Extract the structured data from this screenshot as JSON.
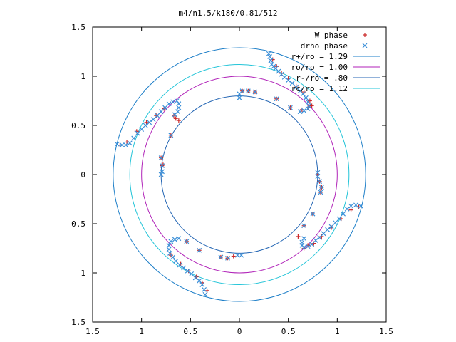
{
  "chart_data": {
    "type": "scatter",
    "title": "m4/n1.5/k180/0.81/512",
    "xlabel": "",
    "ylabel": "",
    "xlim": [
      -1.5,
      1.5
    ],
    "ylim": [
      -1.5,
      1.5
    ],
    "x_ticks": [
      -1.5,
      -1,
      -0.5,
      0,
      0.5,
      1,
      1.5
    ],
    "y_ticks": [
      -1.5,
      -1,
      -0.5,
      0,
      0.5,
      1,
      1.5
    ],
    "x_tick_labels": [
      "1.5",
      "1",
      "0.5",
      "0",
      "0.5",
      "1",
      "1.5"
    ],
    "y_tick_labels": [
      "1.5",
      "1",
      "0.5",
      "0",
      "0.5",
      "1",
      "1.5"
    ],
    "grid": false,
    "legend_position": "top-right",
    "circles": [
      {
        "label": "r+/ro = 1.29",
        "radius": 1.29,
        "color": "#1e7fc8"
      },
      {
        "label": "ro/ro = 1.00",
        "radius": 1.0,
        "color": "#b022b8"
      },
      {
        "label": "r-/ro = .80",
        "radius": 0.8,
        "color": "#2466b4"
      },
      {
        "label": "rc/ro = 1.12",
        "radius": 1.12,
        "color": "#22c4d8"
      }
    ],
    "series": [
      {
        "name": "W phase",
        "marker": "plus",
        "color": "#cc2a2a",
        "points": [
          [
            0.03,
            0.85
          ],
          [
            0.09,
            0.85
          ],
          [
            0.16,
            0.84
          ],
          [
            0.38,
            0.77
          ],
          [
            0.52,
            0.68
          ],
          [
            0.64,
            0.66
          ],
          [
            0.7,
            0.68
          ],
          [
            0.74,
            0.7
          ],
          [
            -0.79,
            0.09
          ],
          [
            -0.8,
            0.17
          ],
          [
            -0.78,
            0.1
          ],
          [
            -0.7,
            0.4
          ],
          [
            -0.62,
            0.55
          ],
          [
            -0.65,
            0.57
          ],
          [
            -0.67,
            0.6
          ],
          [
            0.8,
            0.0
          ],
          [
            0.82,
            -0.07
          ],
          [
            0.84,
            -0.13
          ],
          [
            0.83,
            -0.18
          ],
          [
            0.75,
            -0.4
          ],
          [
            0.66,
            -0.52
          ],
          [
            0.6,
            -0.63
          ],
          [
            -0.54,
            -0.68
          ],
          [
            -0.41,
            -0.77
          ],
          [
            -0.19,
            -0.84
          ],
          [
            -0.12,
            -0.85
          ],
          [
            -0.06,
            -0.83
          ],
          [
            0.34,
            1.17
          ],
          [
            0.38,
            1.1
          ],
          [
            0.43,
            1.03
          ],
          [
            0.5,
            0.98
          ],
          [
            0.58,
            0.9
          ],
          [
            0.66,
            0.84
          ],
          [
            0.72,
            0.75
          ],
          [
            -1.22,
            0.3
          ],
          [
            -1.15,
            0.33
          ],
          [
            -1.05,
            0.44
          ],
          [
            -0.95,
            0.53
          ],
          [
            -0.85,
            0.6
          ],
          [
            -0.77,
            0.67
          ],
          [
            -0.33,
            -1.18
          ],
          [
            -0.38,
            -1.1
          ],
          [
            -0.44,
            -1.04
          ],
          [
            -0.52,
            -0.98
          ],
          [
            -0.6,
            -0.91
          ],
          [
            -0.7,
            -0.82
          ],
          [
            1.22,
            -0.33
          ],
          [
            1.14,
            -0.36
          ],
          [
            1.04,
            -0.45
          ],
          [
            0.94,
            -0.54
          ],
          [
            0.84,
            -0.63
          ],
          [
            0.76,
            -0.7
          ],
          [
            0.7,
            -0.72
          ],
          [
            0.66,
            -0.75
          ]
        ]
      },
      {
        "name": "drho phase",
        "marker": "cross",
        "color": "#3a8fd8",
        "points": [
          [
            0.3,
            1.23
          ],
          [
            0.31,
            1.2
          ],
          [
            0.32,
            1.16
          ],
          [
            0.33,
            1.12
          ],
          [
            0.35,
            1.1
          ],
          [
            0.37,
            1.08
          ],
          [
            0.4,
            1.05
          ],
          [
            0.43,
            1.02
          ],
          [
            0.46,
            0.99
          ],
          [
            0.5,
            0.96
          ],
          [
            0.54,
            0.93
          ],
          [
            0.58,
            0.89
          ],
          [
            0.62,
            0.85
          ],
          [
            0.65,
            0.82
          ],
          [
            0.68,
            0.78
          ],
          [
            0.7,
            0.74
          ],
          [
            0.71,
            0.7
          ],
          [
            0.7,
            0.67
          ],
          [
            0.66,
            0.65
          ],
          [
            0.62,
            0.64
          ],
          [
            -1.25,
            0.31
          ],
          [
            -1.2,
            0.3
          ],
          [
            -1.16,
            0.3
          ],
          [
            -1.12,
            0.32
          ],
          [
            -1.08,
            0.37
          ],
          [
            -1.04,
            0.42
          ],
          [
            -1.0,
            0.46
          ],
          [
            -0.96,
            0.5
          ],
          [
            -0.92,
            0.53
          ],
          [
            -0.88,
            0.56
          ],
          [
            -0.84,
            0.6
          ],
          [
            -0.8,
            0.64
          ],
          [
            -0.76,
            0.68
          ],
          [
            -0.72,
            0.72
          ],
          [
            -0.68,
            0.74
          ],
          [
            -0.64,
            0.75
          ],
          [
            -0.62,
            0.72
          ],
          [
            -0.62,
            0.68
          ],
          [
            -0.63,
            0.64
          ],
          [
            -0.66,
            0.61
          ],
          [
            -0.35,
            -1.22
          ],
          [
            -0.36,
            -1.17
          ],
          [
            -0.38,
            -1.12
          ],
          [
            -0.41,
            -1.08
          ],
          [
            -0.45,
            -1.05
          ],
          [
            -0.49,
            -1.01
          ],
          [
            -0.53,
            -0.98
          ],
          [
            -0.57,
            -0.95
          ],
          [
            -0.61,
            -0.92
          ],
          [
            -0.65,
            -0.88
          ],
          [
            -0.68,
            -0.84
          ],
          [
            -0.71,
            -0.8
          ],
          [
            -0.72,
            -0.76
          ],
          [
            -0.72,
            -0.72
          ],
          [
            -0.7,
            -0.68
          ],
          [
            -0.66,
            -0.66
          ],
          [
            -0.62,
            -0.65
          ],
          [
            1.24,
            -0.32
          ],
          [
            1.19,
            -0.31
          ],
          [
            1.14,
            -0.32
          ],
          [
            1.1,
            -0.35
          ],
          [
            1.06,
            -0.4
          ],
          [
            1.02,
            -0.45
          ],
          [
            0.98,
            -0.49
          ],
          [
            0.94,
            -0.53
          ],
          [
            0.9,
            -0.56
          ],
          [
            0.86,
            -0.6
          ],
          [
            0.82,
            -0.64
          ],
          [
            0.78,
            -0.67
          ],
          [
            0.74,
            -0.71
          ],
          [
            0.7,
            -0.73
          ],
          [
            0.66,
            -0.74
          ],
          [
            0.64,
            -0.72
          ],
          [
            0.64,
            -0.69
          ],
          [
            0.66,
            -0.65
          ],
          [
            0.0,
            0.82
          ],
          [
            0.0,
            0.78
          ],
          [
            -0.79,
            0.03
          ],
          [
            -0.8,
            0.0
          ],
          [
            0.8,
            -0.02
          ],
          [
            0.8,
            0.02
          ],
          [
            -0.02,
            -0.82
          ],
          [
            0.02,
            -0.82
          ],
          [
            0.03,
            0.85
          ],
          [
            0.09,
            0.85
          ],
          [
            0.16,
            0.84
          ],
          [
            0.38,
            0.77
          ],
          [
            0.52,
            0.68
          ],
          [
            -0.79,
            0.09
          ],
          [
            -0.8,
            0.17
          ],
          [
            -0.7,
            0.4
          ],
          [
            0.82,
            -0.07
          ],
          [
            0.84,
            -0.13
          ],
          [
            0.83,
            -0.18
          ],
          [
            0.75,
            -0.4
          ],
          [
            0.66,
            -0.52
          ],
          [
            -0.54,
            -0.68
          ],
          [
            -0.41,
            -0.77
          ],
          [
            -0.19,
            -0.84
          ],
          [
            -0.12,
            -0.85
          ]
        ]
      }
    ]
  }
}
